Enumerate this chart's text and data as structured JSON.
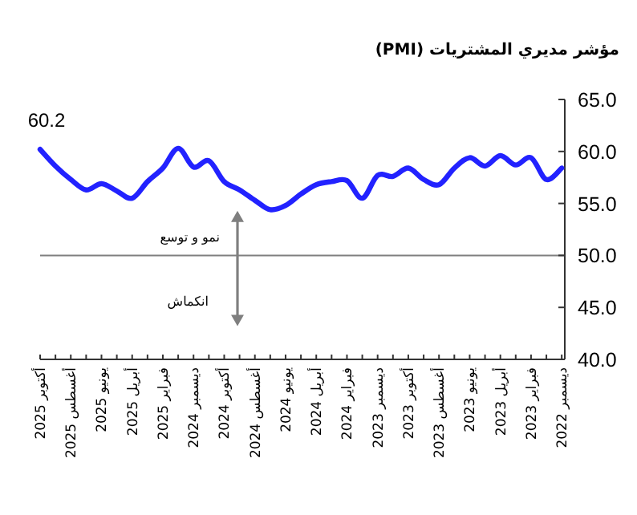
{
  "chart_data": {
    "type": "line",
    "title": "مؤشر مديري المشتريات (PMI)",
    "categories": [
      "أكتوبر 2025",
      null,
      "أغسطس 2025",
      null,
      "يونيو 2025",
      null,
      "أبريل 2025",
      null,
      "فبراير 2025",
      null,
      "ديسمبر 2024",
      null,
      "أكتوبر 2024",
      null,
      "أغسطس 2024",
      null,
      "يونيو 2024",
      null,
      "أبريل 2024",
      null,
      "فبراير 2024",
      null,
      "ديسمبر 2023",
      null,
      "أكتوبر 2023",
      null,
      "أغسطس 2023",
      null,
      "يونيو 2023",
      null,
      "أبريل 2023",
      null,
      "فبراير 2023",
      null,
      "ديسمبر 2022"
    ],
    "values": [
      60.2,
      58.6,
      57.3,
      56.3,
      56.9,
      56.2,
      55.5,
      57.1,
      58.4,
      60.3,
      58.5,
      59.1,
      57.1,
      56.3,
      55.3,
      54.4,
      54.8,
      55.9,
      56.8,
      57.1,
      57.2,
      55.5,
      57.7,
      57.6,
      58.4,
      57.3,
      56.8,
      58.4,
      59.4,
      58.6,
      59.6,
      58.7,
      59.4,
      57.3,
      58.4
    ],
    "value_labels": [
      "60.2",
      null,
      null,
      null,
      null,
      null,
      null,
      null,
      null,
      null,
      null,
      null,
      null,
      null,
      null,
      null,
      null,
      null,
      null,
      null,
      null,
      null,
      null,
      null,
      null,
      null,
      null,
      null,
      null,
      null,
      null,
      null,
      null,
      null,
      null
    ],
    "color": "#2222ff",
    "ylim": [
      40,
      65
    ],
    "yticks": [
      {
        "value": 40,
        "label": "40.0"
      },
      {
        "value": 45,
        "label": "45.0"
      },
      {
        "value": 50,
        "label": "50.0"
      },
      {
        "value": 55,
        "label": "55.0"
      },
      {
        "value": 60,
        "label": "60.0"
      },
      {
        "value": 65,
        "label": "65.0"
      }
    ],
    "ref_lines": [
      {
        "axis": "y",
        "value": 50,
        "color": "#7f7f7f"
      }
    ],
    "annotations": [
      "نمو و توسع",
      "انكماش"
    ]
  }
}
